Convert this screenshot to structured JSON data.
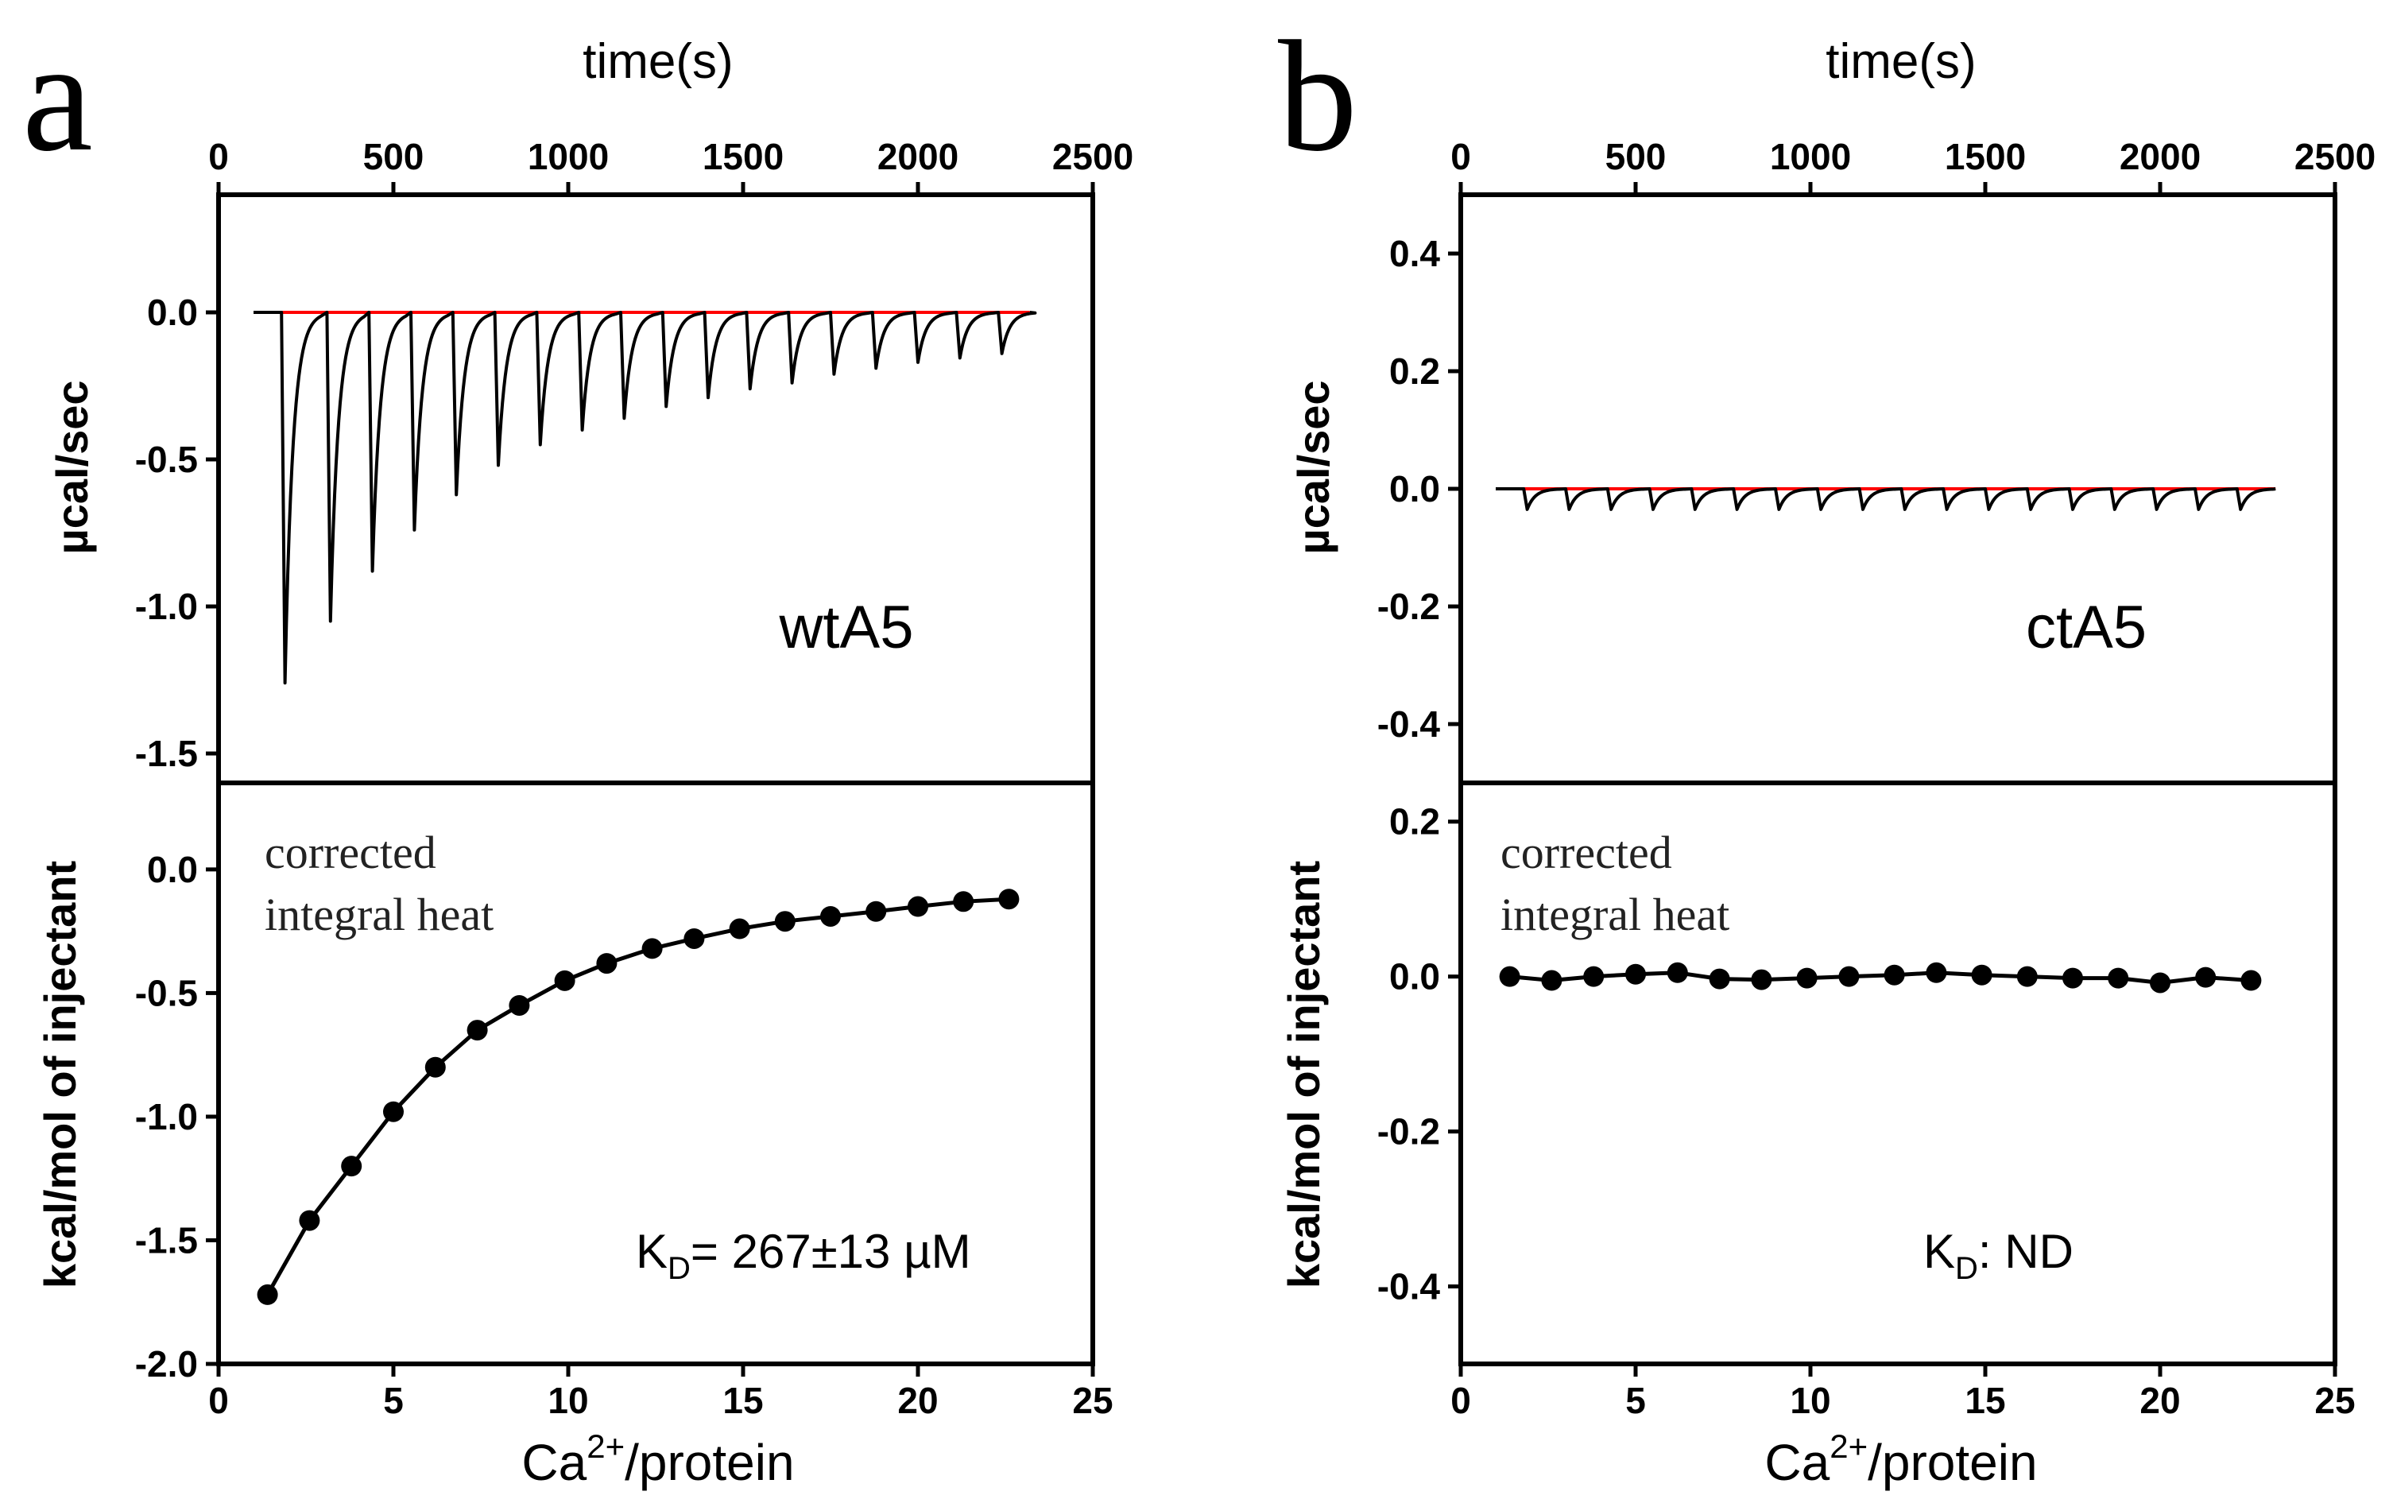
{
  "chart_data": [
    {
      "panel": "a",
      "sample": "wtA5",
      "top": {
        "type": "line",
        "title": "time(s)",
        "ylabel": "µcal/sec",
        "xlim": [
          0,
          2500
        ],
        "ylim": [
          -1.6,
          0.4
        ],
        "xticks": [
          "0",
          "500",
          "1000",
          "1500",
          "2000",
          "2500"
        ],
        "yticks": [
          "0.0",
          "-0.5",
          "-1.0",
          "-1.5"
        ],
        "baseline_color": "#ff0000",
        "trace_range": [
          100,
          2320
        ],
        "injection_times": [
          180,
          310,
          430,
          550,
          670,
          790,
          910,
          1030,
          1150,
          1270,
          1390,
          1510,
          1630,
          1750,
          1870,
          1990,
          2110,
          2230
        ],
        "peak_values": [
          -1.26,
          -1.05,
          -0.88,
          -0.74,
          -0.62,
          -0.52,
          -0.45,
          -0.4,
          -0.36,
          -0.32,
          -0.29,
          -0.26,
          -0.24,
          -0.21,
          -0.19,
          -0.17,
          -0.155,
          -0.14
        ]
      },
      "bottom": {
        "type": "scatter",
        "note_line1": "corrected",
        "note_line2": "integral heat",
        "ylabel": "kcal/mol of injectant",
        "xlabel_base": "Ca",
        "xlabel_sup": "2+",
        "xlabel_rest": "/protein",
        "xlim": [
          0,
          25
        ],
        "ylim": [
          -2.0,
          0.35
        ],
        "xticks": [
          "0",
          "5",
          "10",
          "15",
          "20",
          "25"
        ],
        "yticks": [
          "0.0",
          "-0.5",
          "-1.0",
          "-1.5",
          "-2.0"
        ],
        "x": [
          1.4,
          2.6,
          3.8,
          5.0,
          6.2,
          7.4,
          8.6,
          9.9,
          11.1,
          12.4,
          13.6,
          14.9,
          16.2,
          17.5,
          18.8,
          20.0,
          21.3,
          22.6
        ],
        "y": [
          -1.72,
          -1.42,
          -1.2,
          -0.98,
          -0.8,
          -0.65,
          -0.55,
          -0.45,
          -0.38,
          -0.32,
          -0.28,
          -0.24,
          -0.21,
          -0.19,
          -0.17,
          -0.15,
          -0.13,
          -0.12
        ],
        "kd_prefix": "K",
        "kd_sub": "D",
        "kd_text": "= 267±13 µM"
      }
    },
    {
      "panel": "b",
      "sample": "ctA5",
      "top": {
        "type": "line",
        "title": "time(s)",
        "ylabel": "µcal/sec",
        "xlim": [
          0,
          2500
        ],
        "ylim": [
          -0.5,
          0.5
        ],
        "xticks": [
          "0",
          "500",
          "1000",
          "1500",
          "2000",
          "2500"
        ],
        "yticks": [
          "0.4",
          "0.2",
          "0.0",
          "-0.2",
          "-0.4"
        ],
        "baseline_color": "#ff0000",
        "trace_range": [
          100,
          2330
        ],
        "injection_times": [
          180,
          300,
          420,
          540,
          660,
          780,
          900,
          1020,
          1140,
          1260,
          1380,
          1500,
          1620,
          1740,
          1860,
          1980,
          2100,
          2220
        ],
        "peak_values": [
          -0.035,
          -0.035,
          -0.035,
          -0.035,
          -0.035,
          -0.035,
          -0.035,
          -0.035,
          -0.035,
          -0.035,
          -0.035,
          -0.035,
          -0.035,
          -0.035,
          -0.035,
          -0.035,
          -0.035,
          -0.035
        ]
      },
      "bottom": {
        "type": "scatter",
        "note_line1": "corrected",
        "note_line2": "integral heat",
        "ylabel": "kcal/mol of injectant",
        "xlabel_base": "Ca",
        "xlabel_sup": "2+",
        "xlabel_rest": "/protein",
        "xlim": [
          0,
          25
        ],
        "ylim": [
          -0.5,
          0.25
        ],
        "xticks": [
          "0",
          "5",
          "10",
          "15",
          "20",
          "25"
        ],
        "yticks": [
          "0.2",
          "0.0",
          "-0.2",
          "-0.4"
        ],
        "x": [
          1.4,
          2.6,
          3.8,
          5.0,
          6.2,
          7.4,
          8.6,
          9.9,
          11.1,
          12.4,
          13.6,
          14.9,
          16.2,
          17.5,
          18.8,
          20.0,
          21.3,
          22.6
        ],
        "y": [
          0.0,
          -0.005,
          0.0,
          0.003,
          0.005,
          -0.003,
          -0.004,
          -0.002,
          0.0,
          0.002,
          0.005,
          0.002,
          0.0,
          -0.002,
          -0.002,
          -0.008,
          -0.001,
          -0.005
        ],
        "kd_prefix": "K",
        "kd_sub": "D",
        "kd_text": ": ND"
      }
    }
  ]
}
